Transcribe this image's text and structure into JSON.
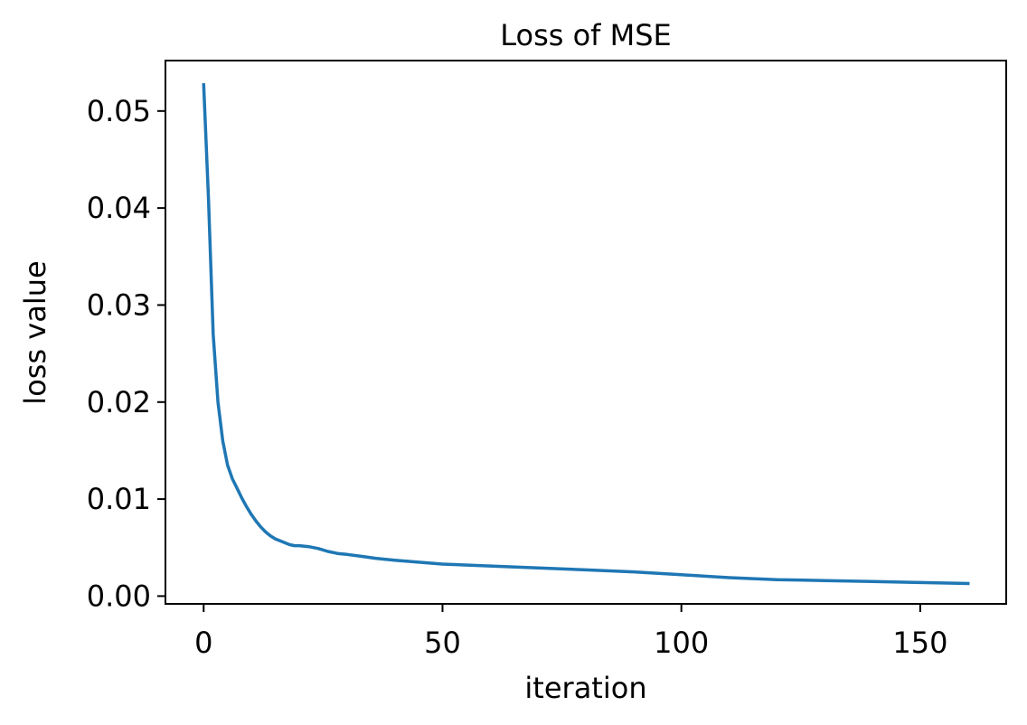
{
  "chart_data": {
    "type": "line",
    "title": "Loss of MSE",
    "xlabel": "iteration",
    "ylabel": "loss value",
    "xlim": [
      -8,
      168
    ],
    "ylim": [
      -0.0008,
      0.0552
    ],
    "xticks": [
      0,
      50,
      100,
      150
    ],
    "xtick_labels": [
      "0",
      "50",
      "100",
      "150"
    ],
    "yticks": [
      0.0,
      0.01,
      0.02,
      0.03,
      0.04,
      0.05
    ],
    "ytick_labels": [
      "0.00",
      "0.01",
      "0.02",
      "0.03",
      "0.04",
      "0.05"
    ],
    "grid": false,
    "series": [
      {
        "color": "#1f77b4",
        "x": [
          0,
          1,
          2,
          3,
          4,
          5,
          6,
          7,
          8,
          9,
          10,
          11,
          12,
          13,
          14,
          15,
          16,
          17,
          18,
          19,
          20,
          22,
          24,
          26,
          28,
          30,
          33,
          36,
          40,
          45,
          50,
          60,
          70,
          80,
          90,
          100,
          110,
          120,
          130,
          140,
          150,
          160
        ],
        "y": [
          0.0527,
          0.041,
          0.027,
          0.02,
          0.016,
          0.0135,
          0.0121,
          0.0111,
          0.0101,
          0.0092,
          0.0084,
          0.0077,
          0.0071,
          0.0066,
          0.0062,
          0.0059,
          0.0057,
          0.0055,
          0.0053,
          0.0052,
          0.0052,
          0.0051,
          0.0049,
          0.0046,
          0.0044,
          0.0043,
          0.0041,
          0.0039,
          0.0037,
          0.0035,
          0.0033,
          0.0031,
          0.0029,
          0.0027,
          0.0025,
          0.0022,
          0.0019,
          0.0017,
          0.0016,
          0.0015,
          0.0014,
          0.0013
        ]
      }
    ]
  }
}
